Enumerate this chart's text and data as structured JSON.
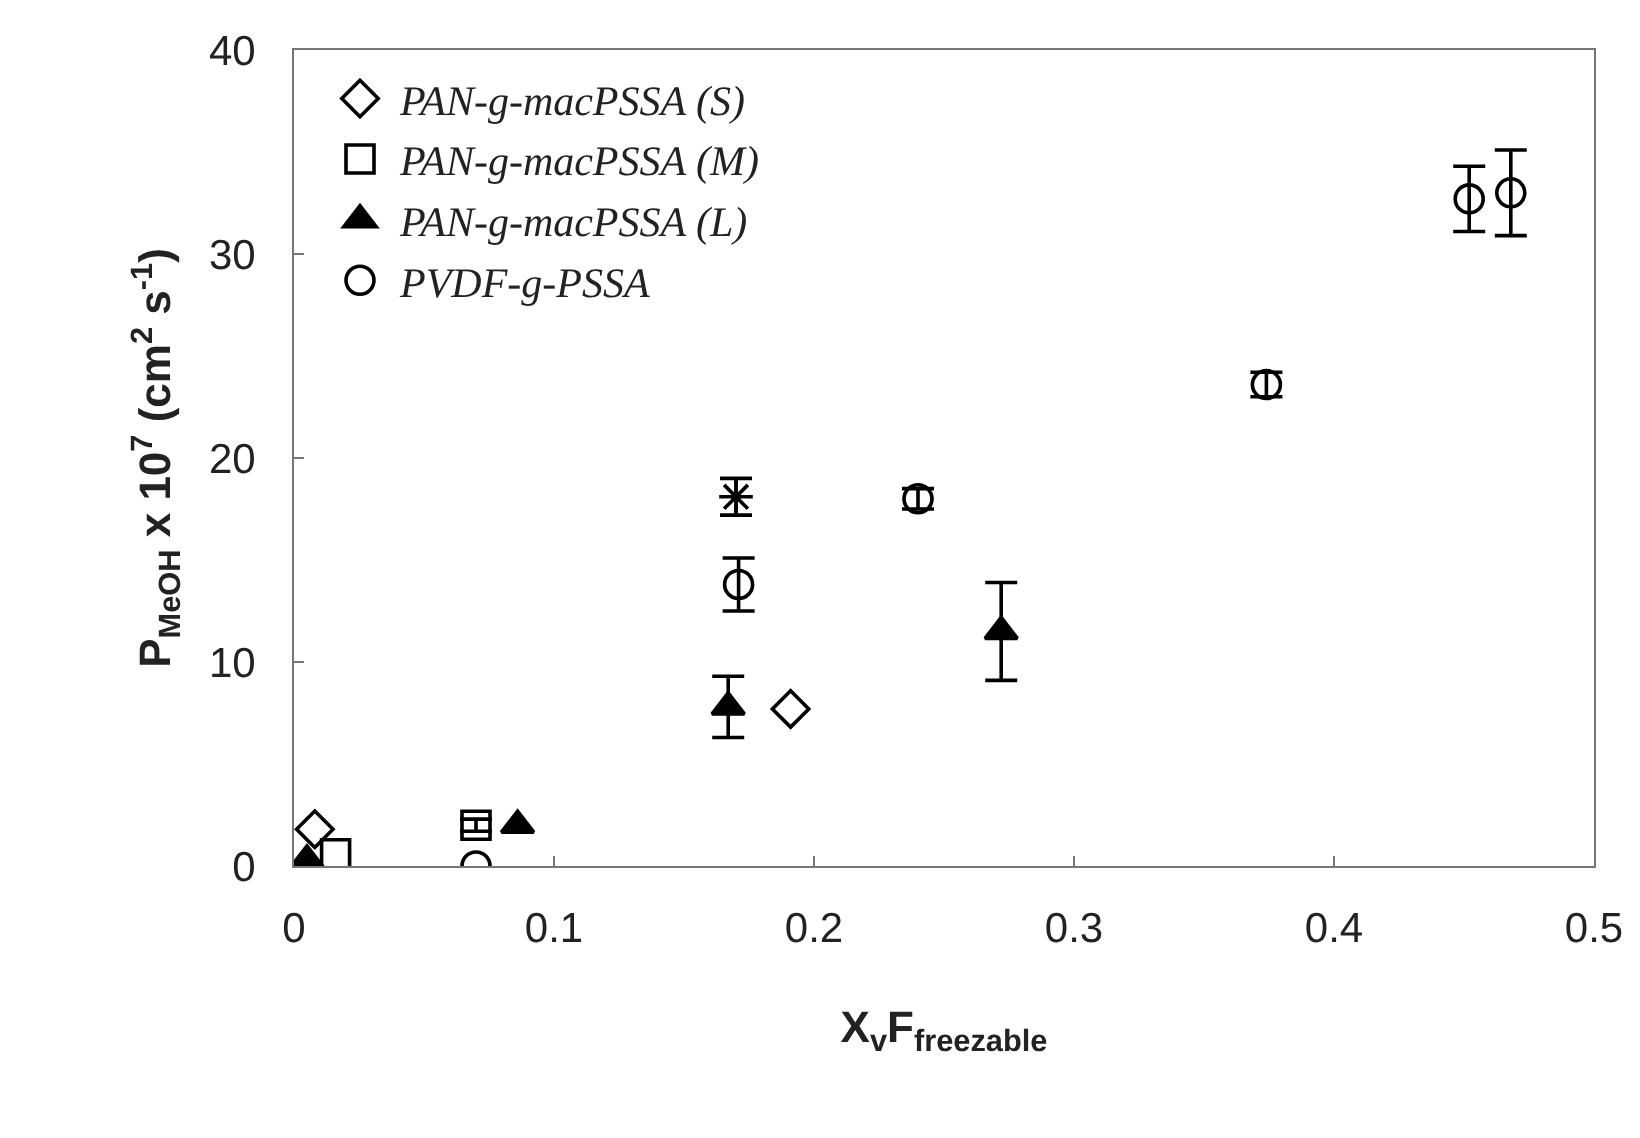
{
  "chart_data": {
    "type": "scatter",
    "xlabel": "X$_{v}$F$_{freezable}$",
    "ylabel": "P$_{MeOH}$ x 10$^{7}$ (cm$^{2}$ s$^{-1}$)",
    "xlim": [
      0,
      0.5
    ],
    "xticks": [
      0,
      0.1,
      0.2,
      0.3,
      0.4,
      0.5
    ],
    "ylim": [
      0,
      40
    ],
    "yticks": [
      0,
      10,
      20,
      30,
      40
    ],
    "grid": false,
    "legend": "top left",
    "series": [
      {
        "name": "PAN-g-macPSSA (S)",
        "color": "#000000",
        "marker": "diamond",
        "x": [
          0.008,
          0.191
        ],
        "values": [
          1.8,
          7.7
        ]
      },
      {
        "name": "PAN-g-macPSSA (M)",
        "color": "#000000",
        "marker": "square",
        "x": [
          0.016,
          0.07
        ],
        "values": [
          0.6,
          2.0
        ],
        "errors": [
          null,
          0.3
        ]
      },
      {
        "name": "PAN-g-macPSSA (L)",
        "color": "#000000",
        "marker": "triangle",
        "x": [
          0.005,
          0.086,
          0.167,
          0.272
        ],
        "values": [
          0.3,
          2.0,
          7.8,
          11.5
        ],
        "errors": [
          null,
          null,
          1.5,
          2.4
        ]
      },
      {
        "name": "PVDF-g-PSSA",
        "color": "#000000",
        "marker": "circle",
        "x": [
          0.07,
          0.171,
          0.24,
          0.374,
          0.452,
          0.468
        ],
        "values": [
          0,
          13.8,
          18.0,
          23.6,
          32.7,
          33.0
        ],
        "errors": [
          null,
          1.3,
          0.5,
          0.6,
          1.6,
          2.1
        ]
      },
      {
        "color": "#000000",
        "marker": "cross",
        "x": [
          0.17
        ],
        "values": [
          18.1
        ],
        "errors": [
          0.9
        ]
      }
    ]
  }
}
